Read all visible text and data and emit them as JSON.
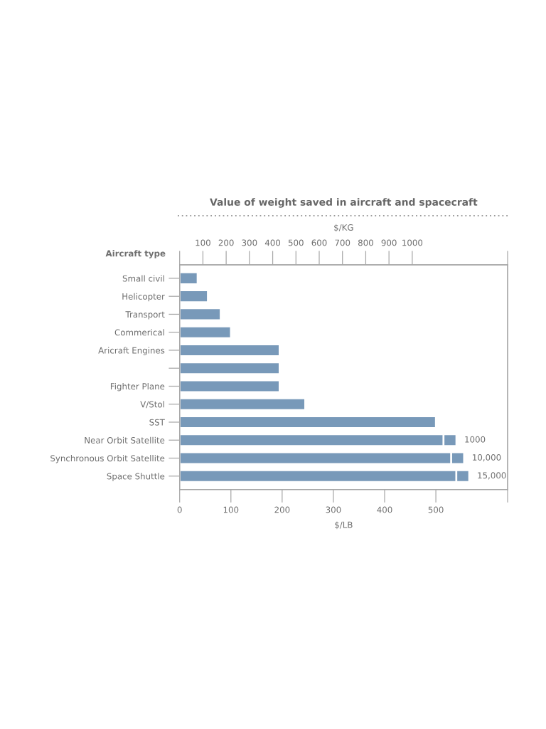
{
  "chart_data": {
    "type": "bar",
    "orientation": "horizontal",
    "stacked": true,
    "title": "Value of weight saved in aircraft and spacecraft",
    "ylabel": "Aircraft type",
    "xlabel": "$/LB",
    "x2label": "$/KG",
    "categories": [
      "Small civil",
      "Helicopter",
      "Transport",
      "Commerical",
      "Aricraft Engines",
      null,
      "Fighter Plane",
      "V/Stol",
      "SST",
      "Near Orbit Satellite",
      "Synchronous Orbit Satellite",
      "Space Shuttle"
    ],
    "series": [
      {
        "color": "#7899b9",
        "values": [
          35,
          55,
          80,
          100,
          195,
          195,
          195,
          245,
          500,
          515,
          530,
          540
        ]
      },
      {
        "color": "#7899b9",
        "values": [
          null,
          null,
          null,
          null,
          null,
          null,
          null,
          null,
          null,
          25,
          25,
          25
        ]
      }
    ],
    "xlim": [
      0,
      640
    ],
    "xticks": [
      0,
      100,
      200,
      300,
      400,
      500,
      {
        "value": 640,
        "label": null
      }
    ],
    "x2lim": [
      0,
      1410
    ],
    "x2ticks": [
      {
        "value": 0,
        "label": null
      },
      100,
      200,
      300,
      400,
      500,
      600,
      700,
      800,
      900,
      1000,
      {
        "value": 1410,
        "label": null
      }
    ],
    "annotations": [
      {
        "text": "1000",
        "x": 540,
        "y": "Near Orbit Satellite"
      },
      {
        "text": "10,000",
        "x": 555,
        "y": "Synchronous Orbit Satellite"
      },
      {
        "text": "15,000",
        "x": 565,
        "y": "Space Shuttle"
      }
    ]
  }
}
